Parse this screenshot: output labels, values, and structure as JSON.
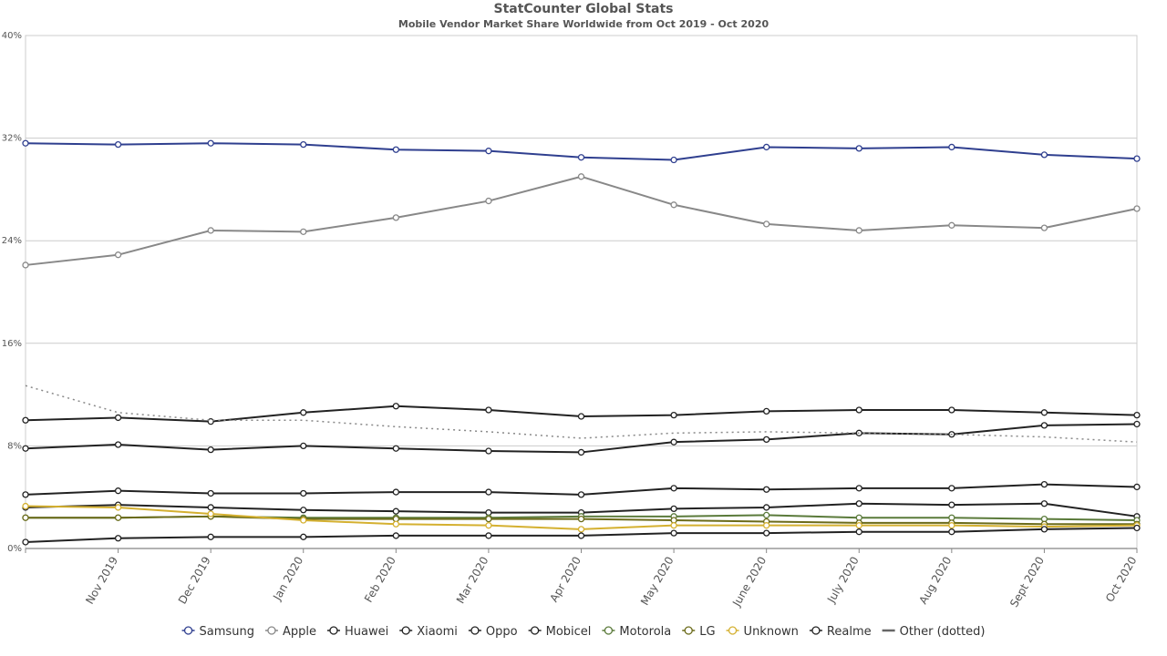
{
  "chart_data": {
    "type": "line",
    "title": "StatCounter Global Stats",
    "subtitle": "Mobile Vendor Market Share Worldwide from Oct 2019 - Oct 2020",
    "ylim": [
      0,
      40
    ],
    "yticks": [
      "0%",
      "8%",
      "16%",
      "24%",
      "32%",
      "40%"
    ],
    "ytick_values": [
      0,
      8,
      16,
      24,
      32,
      40
    ],
    "x": [
      "Oct 2019",
      "Nov 2019",
      "Dec 2019",
      "Jan 2020",
      "Feb 2020",
      "Mar 2020",
      "Apr 2020",
      "May 2020",
      "June 2020",
      "July 2020",
      "Aug 2020",
      "Sept 2020",
      "Oct 2020"
    ],
    "x_tick_labels": [
      "",
      "Nov 2019",
      "Dec 2019",
      "Jan 2020",
      "Feb 2020",
      "Mar 2020",
      "Apr 2020",
      "May 2020",
      "June 2020",
      "July 2020",
      "Aug 2020",
      "Sept 2020",
      "Oct 2020"
    ],
    "grid": true,
    "legend_position": "bottom",
    "series": [
      {
        "name": "Samsung",
        "color": "#2f3f8f",
        "style": "solid",
        "values": [
          31.6,
          31.5,
          31.6,
          31.5,
          31.1,
          31.0,
          30.5,
          30.3,
          31.3,
          31.2,
          31.3,
          30.7,
          30.4
        ]
      },
      {
        "name": "Apple",
        "color": "#888888",
        "style": "solid",
        "values": [
          22.1,
          22.9,
          24.8,
          24.7,
          25.8,
          27.1,
          29.0,
          26.8,
          25.3,
          24.8,
          25.2,
          25.0,
          26.5
        ]
      },
      {
        "name": "Huawei",
        "color": "#222222",
        "style": "solid",
        "values": [
          10.0,
          10.2,
          9.9,
          10.6,
          11.1,
          10.8,
          10.3,
          10.4,
          10.7,
          10.8,
          10.8,
          10.6,
          10.4
        ]
      },
      {
        "name": "Xiaomi",
        "color": "#222222",
        "style": "solid",
        "values": [
          7.8,
          8.1,
          7.7,
          8.0,
          7.8,
          7.6,
          7.5,
          8.3,
          8.5,
          9.0,
          8.9,
          9.6,
          9.7
        ]
      },
      {
        "name": "Oppo",
        "color": "#222222",
        "style": "solid",
        "values": [
          4.2,
          4.5,
          4.3,
          4.3,
          4.4,
          4.4,
          4.2,
          4.7,
          4.6,
          4.7,
          4.7,
          5.0,
          4.8
        ]
      },
      {
        "name": "Mobicel",
        "color": "#222222",
        "style": "solid",
        "values": [
          3.2,
          3.4,
          3.2,
          3.0,
          2.9,
          2.8,
          2.8,
          3.1,
          3.2,
          3.5,
          3.4,
          3.5,
          2.5
        ]
      },
      {
        "name": "Motorola",
        "color": "#5a7a3a",
        "style": "solid",
        "values": [
          2.4,
          2.4,
          2.5,
          2.4,
          2.4,
          2.4,
          2.5,
          2.5,
          2.6,
          2.4,
          2.4,
          2.3,
          2.2
        ]
      },
      {
        "name": "LG",
        "color": "#6b6b1a",
        "style": "solid",
        "values": [
          2.4,
          2.4,
          2.5,
          2.3,
          2.3,
          2.3,
          2.3,
          2.2,
          2.1,
          2.0,
          2.0,
          1.9,
          1.9
        ]
      },
      {
        "name": "Unknown",
        "color": "#d4b030",
        "style": "solid",
        "values": [
          3.3,
          3.2,
          2.7,
          2.2,
          1.9,
          1.8,
          1.5,
          1.8,
          1.8,
          1.8,
          1.8,
          1.7,
          1.8
        ]
      },
      {
        "name": "Realme",
        "color": "#222222",
        "style": "solid",
        "values": [
          0.5,
          0.8,
          0.9,
          0.9,
          1.0,
          1.0,
          1.0,
          1.2,
          1.2,
          1.3,
          1.3,
          1.5,
          1.6
        ]
      },
      {
        "name": "Other (dotted)",
        "color": "#888888",
        "style": "dotted",
        "values": [
          12.7,
          10.6,
          10.0,
          10.0,
          9.5,
          9.1,
          8.6,
          9.0,
          9.1,
          9.0,
          8.9,
          8.7,
          8.3
        ]
      }
    ]
  }
}
